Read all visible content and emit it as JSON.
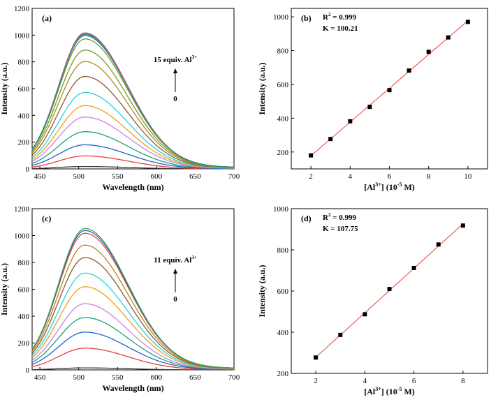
{
  "charts": [
    {
      "panel_label": "(a)",
      "type": "line",
      "xlabel": "Wavelength (nm)",
      "ylabel": "Intensity (a.u.)",
      "xlim": [
        440,
        700
      ],
      "ylim": [
        0,
        1200
      ],
      "xticks": [
        450,
        500,
        550,
        600,
        650,
        700
      ],
      "yticks": [
        0,
        200,
        400,
        600,
        800,
        1000,
        1200
      ],
      "annotation_top": "15 equiv. Al",
      "annotation_sup": "3+",
      "annotation_bottom": "0",
      "peak_nm": 508,
      "series_colors": [
        "#3a3a3a",
        "#e8403a",
        "#1f63c4",
        "#1aa37a",
        "#cf7fe8",
        "#e9a21c",
        "#2ad0da",
        "#8a5a34",
        "#b08b1e",
        "#7a9b1e",
        "#7a9b1e",
        "#3ca0d8",
        "#2a8f86",
        "#2a8f86",
        "#d05a8a",
        "#2a8f86"
      ],
      "peaks": [
        18,
        97,
        178,
        275,
        383,
        468,
        565,
        683,
        793,
        878,
        960,
        985,
        993,
        1000,
        1005,
        985
      ]
    },
    {
      "panel_label": "(b)",
      "type": "scatter",
      "xlabel": "[Al",
      "xlabel_sup": "3+",
      "xlabel_rest": "] (10",
      "xlabel_exp": "-5",
      "xlabel_end": " M)",
      "ylabel": "Intensity (a.u.)",
      "xlim": [
        1,
        11
      ],
      "ylim": [
        100,
        1050
      ],
      "xticks": [
        2,
        4,
        6,
        8,
        10
      ],
      "yticks": [
        200,
        400,
        600,
        800,
        1000
      ],
      "r2_label": "R",
      "r2_sup": "2",
      "r2_value": " = 0.999",
      "k_text": "K = 100.21",
      "x": [
        2,
        3,
        4,
        5,
        6,
        7,
        8,
        9,
        10
      ],
      "y": [
        180,
        277,
        382,
        467,
        566,
        682,
        793,
        878,
        970
      ]
    },
    {
      "panel_label": "(c)",
      "type": "line",
      "xlabel": "Wavelength (nm)",
      "ylabel": "Intensity (a.u.)",
      "xlim": [
        440,
        700
      ],
      "ylim": [
        0,
        1200
      ],
      "xticks": [
        450,
        500,
        550,
        600,
        650,
        700
      ],
      "yticks": [
        0,
        200,
        400,
        600,
        800,
        1000,
        1200
      ],
      "annotation_top": "11 equiv. Al",
      "annotation_sup": "3+",
      "annotation_bottom": "0",
      "peak_nm": 508,
      "series_colors": [
        "#3a3a3a",
        "#e8403a",
        "#1f63c4",
        "#1aa37a",
        "#cf7fe8",
        "#e9a21c",
        "#2ad0da",
        "#8a5a34",
        "#b08b1e",
        "#e8403a",
        "#1f63c4",
        "#3ca84a"
      ],
      "peaks": [
        15,
        160,
        278,
        385,
        487,
        612,
        712,
        826,
        918,
        1005,
        1025,
        1040
      ]
    },
    {
      "panel_label": "(d)",
      "type": "scatter",
      "xlabel": "[Al",
      "xlabel_sup": "3+",
      "xlabel_rest": "] (10",
      "xlabel_exp": "-5",
      "xlabel_end": " M)",
      "ylabel": "Intensity (a.u.)",
      "xlim": [
        1,
        9
      ],
      "ylim": [
        200,
        1000
      ],
      "xticks": [
        2,
        4,
        6,
        8
      ],
      "yticks": [
        200,
        400,
        600,
        800,
        1000
      ],
      "r2_label": "R",
      "r2_sup": "2",
      "r2_value": " = 0.999",
      "k_text": "K = 107.75",
      "x": [
        2,
        3,
        4,
        5,
        6,
        7,
        8
      ],
      "y": [
        277,
        387,
        487,
        610,
        712,
        826,
        918
      ]
    }
  ],
  "colors": {
    "axis": "#000000",
    "fit_line": "#e8403a",
    "marker": "#000000"
  }
}
